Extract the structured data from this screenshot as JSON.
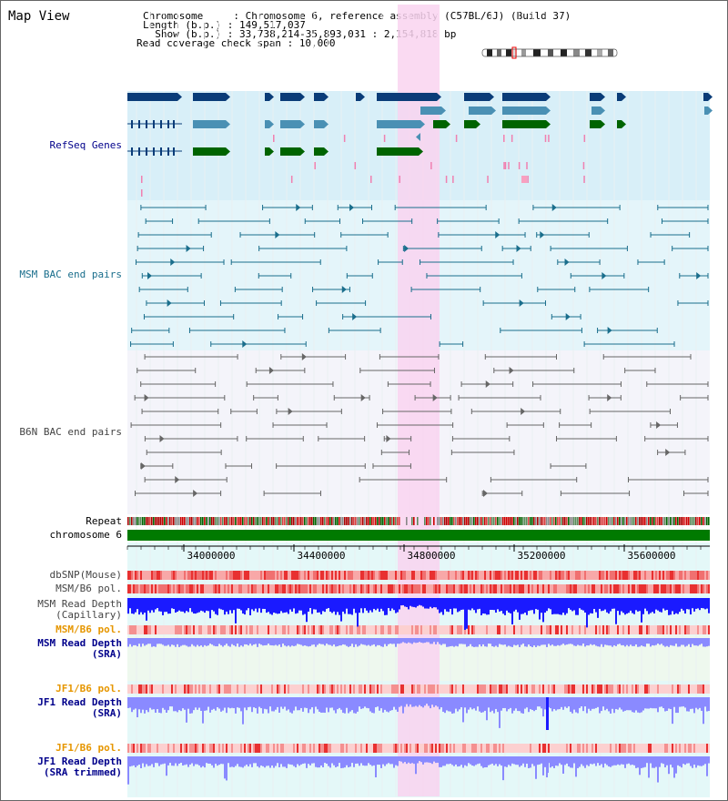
{
  "header": {
    "title": "Map View",
    "info_lines": [
      "Chromosome     : Chromosome 6, reference assembly (C57BL/6J) (Build 37)",
      "Length (b.p.) : 149,517,037",
      "  Show (b.p.) : 33,738,214-35,893,031 : 2,154,818 bp",
      "Read coverage check span : 10,000"
    ]
  },
  "tracks": {
    "refseq": "RefSeq Genes",
    "msm_bac": "MSM BAC end pairs",
    "b6n_bac": "B6N BAC end pairs",
    "repeat": "Repeat",
    "chromosome": "chromosome 6",
    "dbsnp": "dbSNP(Mouse)",
    "msm_b6_pol_1": "MSM/B6 pol.",
    "msm_depth_cap": "MSM Read Depth\n(Capillary)",
    "msm_b6_pol_2": "MSM/B6 pol.",
    "msm_depth_sra": "MSM Read Depth\n(SRA)",
    "jf1_b6_pol_1": "JF1/B6 pol.",
    "jf1_depth_sra": "JF1 Read Depth\n(SRA)",
    "jf1_b6_pol_2": "JF1/B6 pol.",
    "jf1_depth_trim": "JF1 Read Depth\n(SRA trimmed)"
  },
  "axis": {
    "ticks": [
      "34000000",
      "34400000",
      "34800000",
      "35200000",
      "35600000"
    ]
  },
  "colors": {
    "highlight": "#f9d3f0",
    "refseq_bg": "#d8eff8",
    "msm_bg": "#e4f5fa",
    "b6n_bg": "#f4f4fa",
    "depth_bg": "#e4f8f8",
    "gene_dark": "#0a3c78",
    "gene_mid": "#4a90b4",
    "gene_green": "#006400",
    "msm_line": "#1a6e8c",
    "b6n_line": "#666666",
    "chrom": "#007a00",
    "depth_blue": "#1a1aff",
    "depth_light": "#8a8aff",
    "label_blue": "#00008b",
    "label_teal": "#1a6e8c",
    "label_gray": "#444444",
    "label_orange": "#e69600"
  }
}
